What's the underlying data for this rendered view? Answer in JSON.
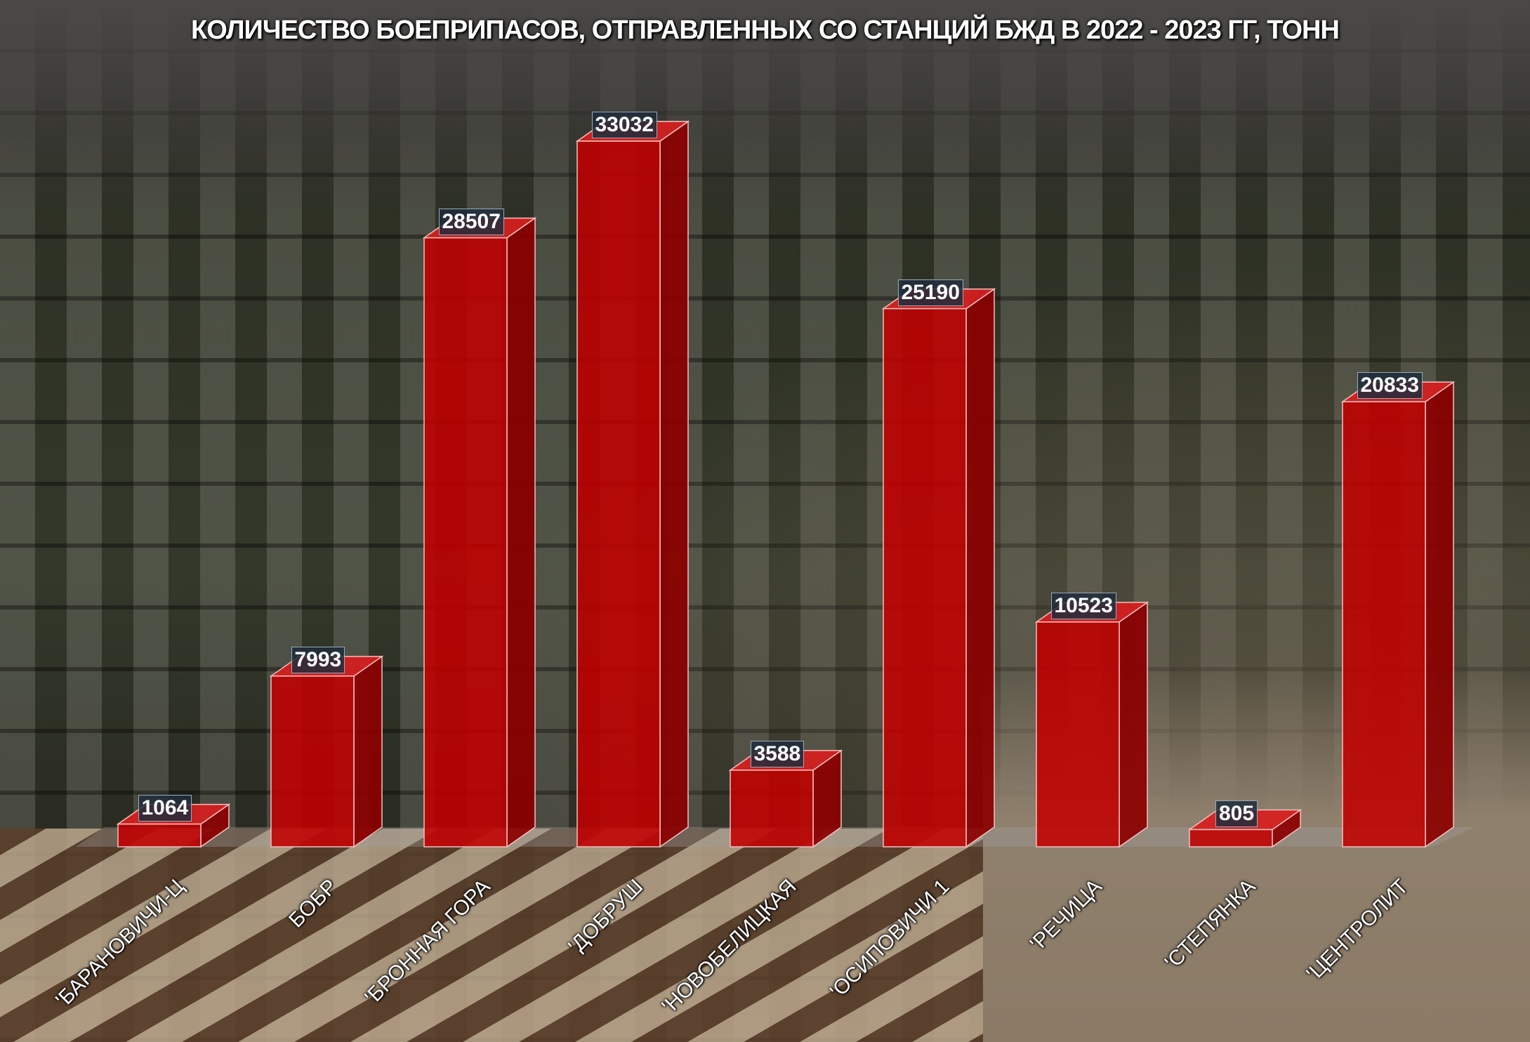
{
  "chart_data": {
    "type": "bar",
    "title": "КОЛИЧЕСТВО БОЕПРИПАСОВ, ОТПРАВЛЕННЫХ СО СТАНЦИЙ БЖД В 2022 - 2023 ГГ, ТОНН",
    "categories": [
      "'БАРАНОВИЧИ-Ц",
      "БОБР",
      "'БРОННАЯ ГОРА",
      "'ДОБРУШ",
      "'НОВОБЕЛИЦКАЯ",
      "'ОСИПОВИЧИ 1",
      "'РЕЧИЦА",
      "'СТЕПЯНКА",
      "'ЦЕНТРОЛИТ"
    ],
    "values": [
      1064,
      7993,
      28507,
      33032,
      3588,
      25190,
      10523,
      805,
      20833
    ],
    "value_labels": [
      "1064",
      "7993",
      "28507",
      "33032",
      "3588",
      "25190",
      "10523",
      "805",
      "20833"
    ],
    "style": "3d-column",
    "bar_color": "#c00000",
    "grid": false,
    "legend": "none"
  }
}
